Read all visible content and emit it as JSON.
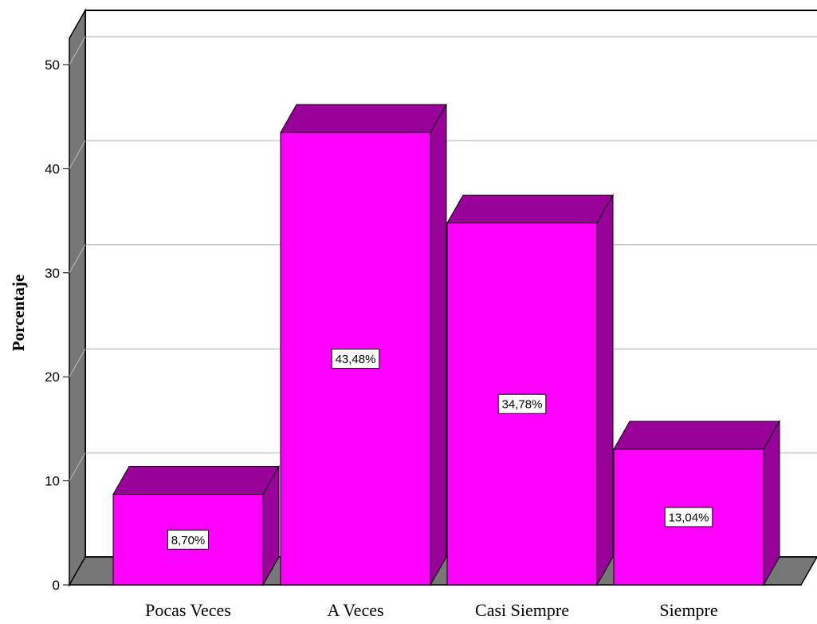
{
  "chart_data": {
    "type": "bar",
    "style": "3d",
    "categories": [
      "Pocas Veces",
      "A Veces",
      "Casi Siempre",
      "Siempre"
    ],
    "values": [
      8.7,
      43.48,
      34.78,
      13.04
    ],
    "data_labels": [
      "8,70%",
      "43,48%",
      "34,78%",
      "13,04%"
    ],
    "title": "",
    "xlabel": "",
    "ylabel": "Porcentaje",
    "ylim": [
      0,
      50
    ],
    "yticks": [
      "0",
      "10",
      "20",
      "30",
      "40",
      "50"
    ],
    "grid": true,
    "legend": "none",
    "colors": {
      "bar_front": "#ff00ff",
      "bar_top": "#990099",
      "bar_side": "#990099",
      "floor": "#777777",
      "gridline": "#c8c8c8"
    }
  }
}
